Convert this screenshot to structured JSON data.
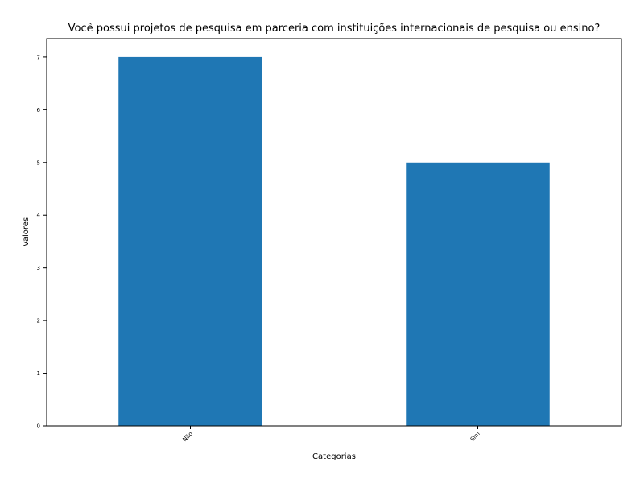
{
  "chart_data": {
    "type": "bar",
    "title": "Você possui projetos de pesquisa em parceria com instituições internacionais de pesquisa ou ensino?",
    "xlabel": "Categorias",
    "ylabel": "Valores",
    "categories": [
      "Não",
      "Sim"
    ],
    "values": [
      7,
      5
    ],
    "ylim": [
      0,
      7.35
    ],
    "yticks": [
      0,
      1,
      2,
      3,
      4,
      5,
      6,
      7
    ],
    "grid": false,
    "legend": "none",
    "bar_color": "#1f77b4"
  }
}
